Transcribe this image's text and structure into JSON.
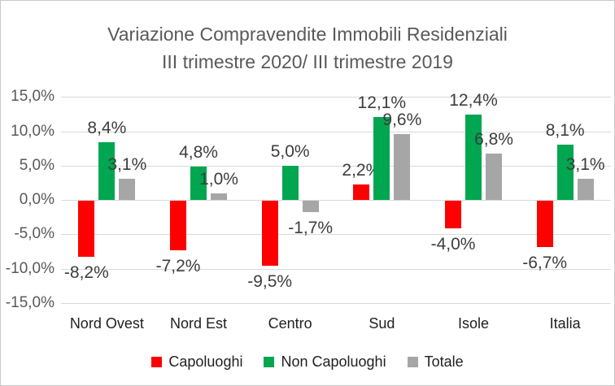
{
  "window": {
    "background": "#ffffff",
    "border_color": "#c9c9c9"
  },
  "chart": {
    "title_line1": "Variazione Compravendite Immobili Residenziali",
    "title_line2": "III trimestre 2020/ III trimestre 2019",
    "title_color": "#595959"
  },
  "chart_data": {
    "type": "bar",
    "title": "Variazione Compravendite Immobili Residenziali III trimestre 2020/ III trimestre 2019",
    "categories": [
      "Nord Ovest",
      "Nord Est",
      "Centro",
      "Sud",
      "Isole",
      "Italia"
    ],
    "series": [
      {
        "name": "Capoluoghi",
        "color": "#ff0000",
        "values": [
          -8.2,
          -7.2,
          -9.5,
          2.2,
          -4.0,
          -6.7
        ],
        "labels": [
          "-8,2%",
          "-7,2%",
          "-9,5%",
          "2,2%",
          "-4,0%",
          "-6,7%"
        ]
      },
      {
        "name": "Non Capoluoghi",
        "color": "#00a650",
        "values": [
          8.4,
          4.8,
          5.0,
          12.1,
          12.4,
          8.1
        ],
        "labels": [
          "8,4%",
          "4,8%",
          "5,0%",
          "12,1%",
          "12,4%",
          "8,1%"
        ]
      },
      {
        "name": "Totale",
        "color": "#a6a6a6",
        "values": [
          3.1,
          1.0,
          -1.7,
          9.6,
          6.8,
          3.1
        ],
        "labels": [
          "3,1%",
          "1,0%",
          "-1,7%",
          "9,6%",
          "6,8%",
          "3,1%"
        ]
      }
    ],
    "y_axis": {
      "min": -15,
      "max": 15,
      "step": 5,
      "tick_labels": [
        "15,0%",
        "10,0%",
        "5,0%",
        "0,0%",
        "-5,0%",
        "-10,0%",
        "-15,0%"
      ]
    },
    "grid": true,
    "gridline_color": "#d9d9d9",
    "legend_position": "bottom"
  }
}
